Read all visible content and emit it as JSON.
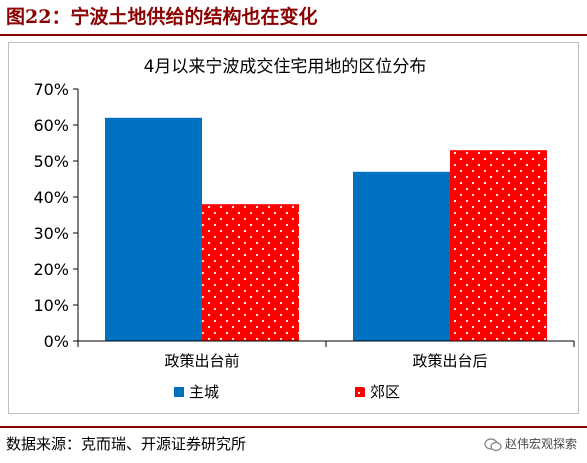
{
  "figure": {
    "title": "图22：宁波土地供给的结构也在变化",
    "source": "数据来源：克而瑞、开源证券研究所",
    "watermark": "赵伟宏观探索"
  },
  "colors": {
    "title": "#8b0000",
    "series_1": "#0070c0",
    "series_2": "#ff0000",
    "rule": "#8b0000"
  },
  "chart_data": {
    "type": "bar",
    "title": "4月以来宁波成交住宅用地的区位分布",
    "xlabel": "",
    "ylabel": "",
    "categories": [
      "政策出台前",
      "政策出台后"
    ],
    "series": [
      {
        "name": "主城",
        "values": [
          62,
          47
        ]
      },
      {
        "name": "郊区",
        "values": [
          38,
          53
        ]
      }
    ],
    "ylim": [
      0,
      70
    ],
    "yticks": [
      0,
      10,
      20,
      30,
      40,
      50,
      60,
      70
    ],
    "ytick_labels": [
      "0%",
      "10%",
      "20%",
      "30%",
      "40%",
      "50%",
      "60%",
      "70%"
    ],
    "grid": false,
    "legend": "bottom"
  }
}
